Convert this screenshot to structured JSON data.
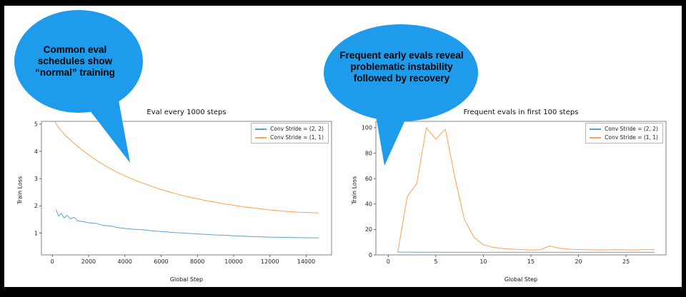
{
  "bubbles": {
    "color": "#1e9beb",
    "left": {
      "text": "Common eval schedules show “normal” training"
    },
    "right": {
      "text": "Frequent early evals reveal problematic instability followed by recovery"
    }
  },
  "chart_data": [
    {
      "type": "line",
      "title": "Eval every 1000 steps",
      "xlabel": "Global Step",
      "ylabel": "Train Loss",
      "xlim": [
        -600,
        15400
      ],
      "ylim": [
        0.2,
        5.1
      ],
      "xticks": [
        0,
        2000,
        4000,
        6000,
        8000,
        10000,
        12000,
        14000
      ],
      "yticks": [
        1,
        2,
        3,
        4,
        5
      ],
      "grid": false,
      "legend_position": "upper right",
      "series": [
        {
          "name": "Conv Stride =  (2, 2)",
          "color": "#5ba3cf",
          "x": [
            200,
            350,
            500,
            650,
            800,
            1000,
            1200,
            1400,
            1700,
            2000,
            2400,
            2800,
            3200,
            3600,
            4000,
            4500,
            5000,
            5500,
            6000,
            6500,
            7000,
            7500,
            8000,
            8500,
            9000,
            9500,
            10000,
            10500,
            11000,
            11500,
            12000,
            12500,
            13000,
            13500,
            14000,
            14700
          ],
          "y": [
            1.87,
            1.62,
            1.73,
            1.55,
            1.65,
            1.52,
            1.58,
            1.45,
            1.42,
            1.38,
            1.36,
            1.28,
            1.26,
            1.2,
            1.17,
            1.14,
            1.12,
            1.08,
            1.06,
            1.03,
            1.01,
            0.99,
            0.97,
            0.95,
            0.93,
            0.92,
            0.9,
            0.89,
            0.87,
            0.86,
            0.85,
            0.845,
            0.84,
            0.835,
            0.83,
            0.82
          ]
        },
        {
          "name": "Conv Stride =  (1, 1)",
          "color": "#ffa04e",
          "x": [
            150,
            400,
            700,
            1000,
            1400,
            1800,
            2200,
            2600,
            3000,
            3500,
            4000,
            4500,
            5000,
            5500,
            6000,
            6500,
            7000,
            7500,
            8000,
            8500,
            9000,
            9500,
            10000,
            10500,
            11000,
            11500,
            12000,
            12500,
            13000,
            13500,
            14000,
            14700
          ],
          "y": [
            5.08,
            4.82,
            4.6,
            4.42,
            4.18,
            3.97,
            3.78,
            3.6,
            3.44,
            3.26,
            3.1,
            2.96,
            2.83,
            2.71,
            2.6,
            2.5,
            2.41,
            2.33,
            2.26,
            2.19,
            2.13,
            2.07,
            2.02,
            1.97,
            1.93,
            1.89,
            1.85,
            1.82,
            1.79,
            1.77,
            1.76,
            1.74
          ]
        }
      ]
    },
    {
      "type": "line",
      "title": "Frequent evals in first 100 steps",
      "xlabel": "Global Step",
      "ylabel": "Train Loss",
      "xlim": [
        -1.3,
        29.2
      ],
      "ylim": [
        0,
        105
      ],
      "xticks": [
        0,
        5,
        10,
        15,
        20,
        25
      ],
      "yticks": [
        0,
        20,
        40,
        60,
        80,
        100
      ],
      "grid": false,
      "legend_position": "upper right",
      "series": [
        {
          "name": "Conv Stride =  (2, 2)",
          "color": "#5ba3cf",
          "x": [
            1,
            3,
            5,
            8,
            10,
            13,
            15,
            18,
            20,
            23,
            25,
            28
          ],
          "y": [
            2.2,
            2.1,
            2.1,
            2,
            2,
            2,
            2,
            2,
            2,
            2,
            2,
            2
          ]
        },
        {
          "name": "Conv Stride =  (1, 1)",
          "color": "#ffa04e",
          "x": [
            1,
            2,
            3,
            4,
            5,
            6,
            7,
            8,
            9,
            10,
            11,
            12,
            13,
            14,
            15,
            16,
            17,
            18,
            19,
            20,
            21,
            22,
            23,
            24,
            25,
            26,
            27,
            28
          ],
          "y": [
            2,
            46,
            56,
            100,
            91,
            99,
            61,
            28,
            14,
            8,
            6,
            5,
            4.5,
            4.2,
            3.8,
            4.2,
            7,
            5.2,
            4.5,
            4.2,
            4,
            3.9,
            4,
            4.1,
            4,
            3.9,
            4.2,
            4
          ]
        }
      ]
    }
  ]
}
